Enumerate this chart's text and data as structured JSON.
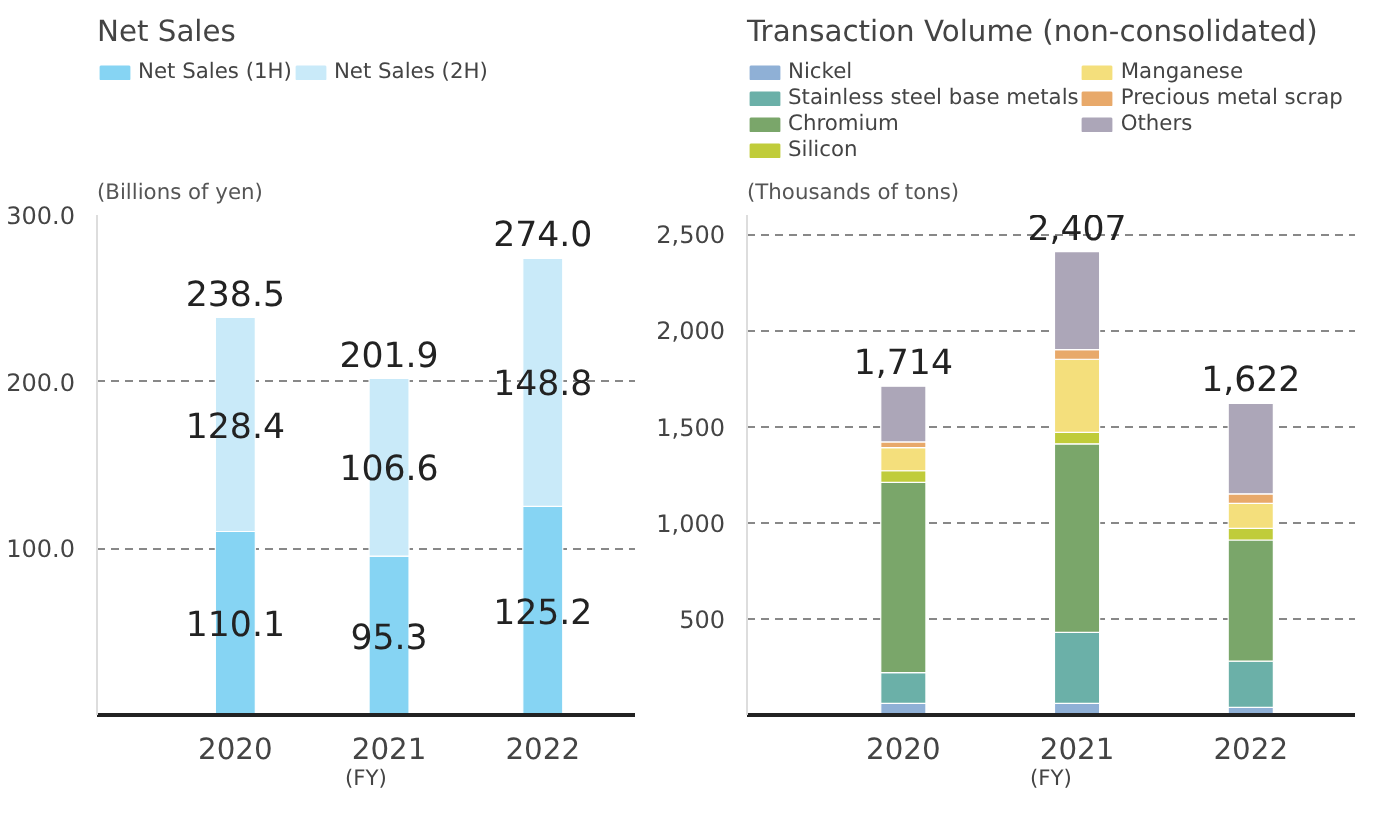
{
  "chart_data": [
    {
      "type": "bar",
      "title": "Net Sales",
      "ylabel": "(Billions of yen)",
      "xlabel": "(FY)",
      "categories": [
        "2020",
        "2021",
        "2022"
      ],
      "stacked": true,
      "ylim": [
        0,
        300
      ],
      "yticks": [
        {
          "value": 100,
          "label": "100.0"
        },
        {
          "value": 200,
          "label": "200.0"
        },
        {
          "value": 300,
          "label": "300.0"
        }
      ],
      "grid": "y",
      "legend": "top",
      "data_labels": true,
      "totals": [
        "238.5",
        "201.9",
        "274.0"
      ],
      "series": [
        {
          "name": "Net Sales (1H)",
          "color": "#86d4f3",
          "values": [
            110.1,
            95.3,
            125.2
          ]
        },
        {
          "name": "Net Sales (2H)",
          "color": "#c9eaf9",
          "values": [
            128.4,
            106.6,
            148.8
          ]
        }
      ]
    },
    {
      "type": "bar",
      "title": "Transaction Volume (non-consolidated)",
      "ylabel": "(Thousands of tons)",
      "xlabel": "(FY)",
      "categories": [
        "2020",
        "2021",
        "2022"
      ],
      "stacked": true,
      "ylim": [
        0,
        2600
      ],
      "yticks": [
        {
          "value": 500,
          "label": "500"
        },
        {
          "value": 1000,
          "label": "1,000"
        },
        {
          "value": 1500,
          "label": "1,500"
        },
        {
          "value": 2000,
          "label": "2,000"
        },
        {
          "value": 2500,
          "label": "2,500"
        }
      ],
      "grid": "y",
      "legend": "top",
      "totals": [
        "1,714",
        "2,407",
        "1,622"
      ],
      "series": [
        {
          "name": "Nickel",
          "color": "#8fb0d6",
          "values": [
            60,
            60,
            40
          ]
        },
        {
          "name": "Stainless steel base metals",
          "color": "#6bb0a8",
          "values": [
            160,
            370,
            240
          ]
        },
        {
          "name": "Chromium",
          "color": "#7aa66a",
          "values": [
            990,
            980,
            630
          ]
        },
        {
          "name": "Silicon",
          "color": "#c0cc3a",
          "values": [
            60,
            60,
            60
          ]
        },
        {
          "name": "Manganese",
          "color": "#f4df7c",
          "values": [
            120,
            380,
            130
          ]
        },
        {
          "name": "Precious metal scrap",
          "color": "#e8a96a",
          "values": [
            30,
            50,
            50
          ]
        },
        {
          "name": "Others",
          "color": "#aca6b8",
          "values": [
            290,
            510,
            470
          ]
        }
      ]
    }
  ]
}
